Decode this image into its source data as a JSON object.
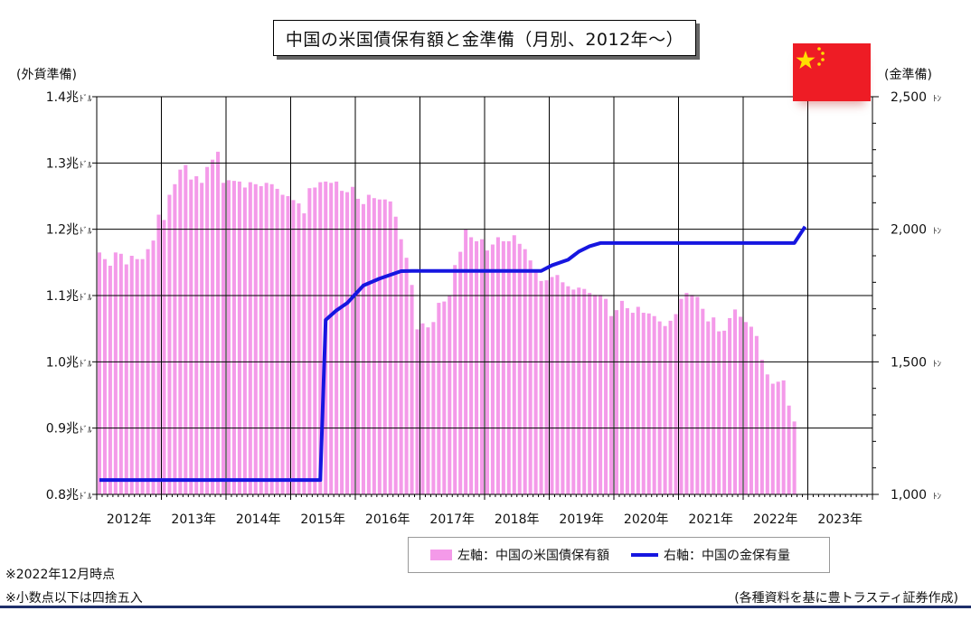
{
  "title": "中国の米国債保有額と金準備（月別、2012年～）",
  "left_axis_label": "(外貨準備)",
  "right_axis_label": "(金準備)",
  "notes": [
    "※2022年12月時点",
    "※小数点以下は四捨五入"
  ],
  "source": "(各種資料を基に豊トラスティ証券作成)",
  "colors": {
    "bar": "#f49ae9",
    "line": "#1616e0",
    "grid": "#000000",
    "flag": "#ee1c25",
    "star": "#ffde00"
  },
  "chart_data": {
    "type": "bar+line",
    "x_categories": [
      "2012年",
      "2013年",
      "2014年",
      "2015年",
      "2016年",
      "2017年",
      "2018年",
      "2019年",
      "2020年",
      "2021年",
      "2022年",
      "2023年"
    ],
    "y_left": {
      "min": 0.8,
      "max": 1.4,
      "ticks": [
        {
          "v": 0.8,
          "num": "0.8兆",
          "unit": "ﾄﾞﾙ"
        },
        {
          "v": 0.9,
          "num": "0.9兆",
          "unit": "ﾄﾞﾙ"
        },
        {
          "v": 1.0,
          "num": "1.0兆",
          "unit": "ﾄﾞﾙ"
        },
        {
          "v": 1.1,
          "num": "1.1兆",
          "unit": "ﾄﾞﾙ"
        },
        {
          "v": 1.2,
          "num": "1.2兆",
          "unit": "ﾄﾞﾙ"
        },
        {
          "v": 1.3,
          "num": "1.3兆",
          "unit": "ﾄﾞﾙ"
        },
        {
          "v": 1.4,
          "num": "1.4兆",
          "unit": "ﾄﾞﾙ"
        }
      ]
    },
    "y_right": {
      "min": 1000,
      "max": 2500,
      "ticks": [
        {
          "v": 1000,
          "num": "1,000",
          "unit": "ﾄﾝ"
        },
        {
          "v": 1500,
          "num": "1,500",
          "unit": "ﾄﾝ"
        },
        {
          "v": 2000,
          "num": "2,000",
          "unit": "ﾄﾝ"
        },
        {
          "v": 2500,
          "num": "2,500",
          "unit": "ﾄﾝ"
        }
      ]
    },
    "series": [
      {
        "name": "左軸：中国の米国債保有額",
        "type": "bar",
        "axis": "left",
        "start": "2012-01",
        "values": [
          1.165,
          1.155,
          1.145,
          1.165,
          1.163,
          1.147,
          1.16,
          1.155,
          1.155,
          1.17,
          1.183,
          1.222,
          1.214,
          1.252,
          1.268,
          1.29,
          1.297,
          1.275,
          1.28,
          1.27,
          1.294,
          1.305,
          1.317,
          1.27,
          1.274,
          1.273,
          1.272,
          1.263,
          1.271,
          1.268,
          1.265,
          1.27,
          1.268,
          1.261,
          1.252,
          1.25,
          1.244,
          1.239,
          1.224,
          1.262,
          1.263,
          1.271,
          1.272,
          1.27,
          1.272,
          1.258,
          1.256,
          1.264,
          1.246,
          1.238,
          1.252,
          1.247,
          1.245,
          1.245,
          1.242,
          1.219,
          1.185,
          1.157,
          1.116,
          1.049,
          1.058,
          1.052,
          1.06,
          1.089,
          1.091,
          1.1,
          1.146,
          1.166,
          1.2,
          1.188,
          1.182,
          1.185,
          1.168,
          1.177,
          1.188,
          1.182,
          1.182,
          1.191,
          1.178,
          1.17,
          1.153,
          1.138,
          1.122,
          1.123,
          1.128,
          1.131,
          1.12,
          1.114,
          1.109,
          1.112,
          1.11,
          1.104,
          1.101,
          1.101,
          1.095,
          1.069,
          1.078,
          1.092,
          1.081,
          1.074,
          1.083,
          1.074,
          1.073,
          1.069,
          1.061,
          1.054,
          1.062,
          1.072,
          1.095,
          1.104,
          1.101,
          1.098,
          1.08,
          1.061,
          1.067,
          1.046,
          1.047,
          1.066,
          1.079,
          1.068,
          1.06,
          1.053,
          1.039,
          1.003,
          0.981,
          0.967,
          0.97,
          0.972,
          0.934,
          0.91
        ]
      },
      {
        "name": "右軸：中国の金保有量",
        "type": "line",
        "axis": "right",
        "points": [
          [
            "2012-01",
            1054
          ],
          [
            "2015-06",
            1054
          ],
          [
            "2015-07",
            1658
          ],
          [
            "2015-09",
            1694
          ],
          [
            "2015-11",
            1722
          ],
          [
            "2016-02",
            1788
          ],
          [
            "2016-05",
            1814
          ],
          [
            "2016-09",
            1842
          ],
          [
            "2016-11",
            1843
          ],
          [
            "2018-11",
            1843
          ],
          [
            "2019-01",
            1864
          ],
          [
            "2019-04",
            1885
          ],
          [
            "2019-06",
            1916
          ],
          [
            "2019-08",
            1936
          ],
          [
            "2019-10",
            1948
          ],
          [
            "2022-10",
            1948
          ],
          [
            "2022-12",
            2010
          ]
        ]
      }
    ]
  }
}
